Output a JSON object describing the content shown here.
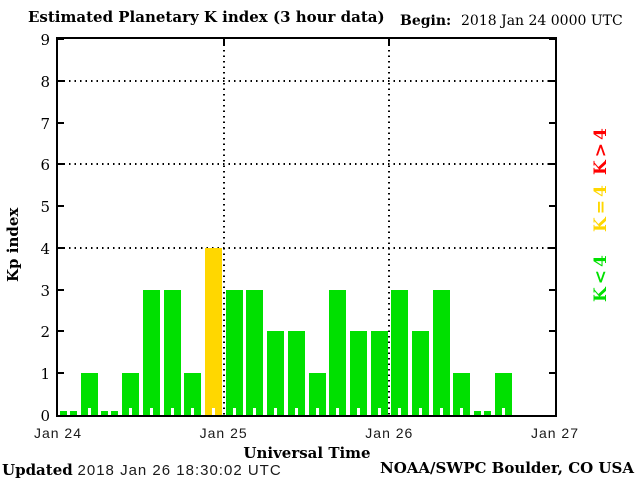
{
  "title": "Estimated Planetary K index (3 hour data)",
  "begin": {
    "label": "Begin:",
    "value": "2018 Jan 24 0000 UTC"
  },
  "y_axis": {
    "label": "Kp index",
    "ticks": [
      0,
      1,
      2,
      3,
      4,
      5,
      6,
      7,
      8,
      9
    ]
  },
  "x_axis": {
    "label": "Universal Time",
    "tick_labels": [
      "Jan 24",
      "Jan 25",
      "Jan 26",
      "Jan 27"
    ]
  },
  "legend": [
    {
      "id": "k-gt-4",
      "label": "K>4",
      "color": "#ff0000"
    },
    {
      "id": "k-eq-4",
      "label": "K=4",
      "color": "#ffd700"
    },
    {
      "id": "k-lt-4",
      "label": "K<4",
      "color": "#00e000"
    }
  ],
  "footer": {
    "updated_label": "Updated",
    "updated_value": "2018 Jan 26 18:30:02 UTC",
    "credit": "NOAA/SWPC Boulder, CO USA"
  },
  "chart_data": {
    "type": "bar",
    "title": "Estimated Planetary K index (3 hour data)",
    "xlabel": "Universal Time",
    "ylabel": "Kp index",
    "ylim": [
      0,
      9
    ],
    "interval_hours": 3,
    "gridlines_y": [
      4,
      6,
      8
    ],
    "grid": "dotted horizontal at 4/6/8, dotted vertical at day boundaries",
    "legend_position": "right, rotated 90deg",
    "series": [
      {
        "name": "Jan 24",
        "values": [
          0,
          1,
          0,
          1,
          3,
          3,
          1,
          4
        ]
      },
      {
        "name": "Jan 25",
        "values": [
          3,
          3,
          2,
          2,
          1,
          3,
          2,
          2
        ]
      },
      {
        "name": "Jan 26",
        "values": [
          3,
          2,
          3,
          1,
          0,
          1,
          null,
          null
        ]
      }
    ],
    "colors": {
      "k_lt_4": "#00e000",
      "k_eq_4": "#ffd700",
      "k_gt_4": "#ff0000"
    }
  }
}
